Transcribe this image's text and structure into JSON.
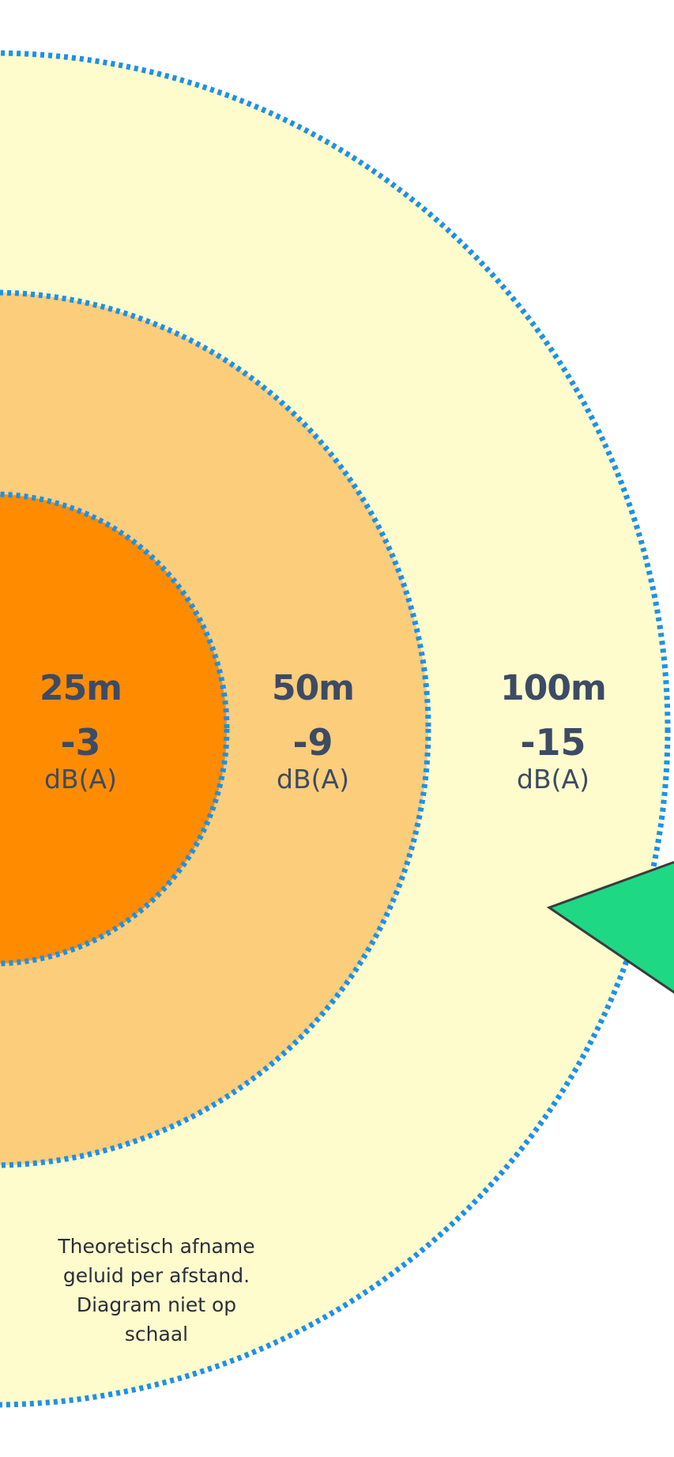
{
  "zones": [
    {
      "distance": "25m",
      "reduction": "-3",
      "unit": "dB(A)"
    },
    {
      "distance": "50m",
      "reduction": "-9",
      "unit": "dB(A)"
    },
    {
      "distance": "100m",
      "reduction": "-15",
      "unit": "dB(A)"
    }
  ],
  "note": {
    "line1": "Theoretisch afname",
    "line2": "geluid per afstand.",
    "line3": "Diagram niet op",
    "line4": "schaal"
  },
  "colors": {
    "inner_zone": "#ff8c00",
    "middle_zone": "#fccd7a",
    "outer_zone": "#fefbcc",
    "ring_border": "#1e90e8",
    "pointer": "#1ed884",
    "pointer_outline": "#3b3b3b",
    "label_text": "#3d4b63"
  }
}
